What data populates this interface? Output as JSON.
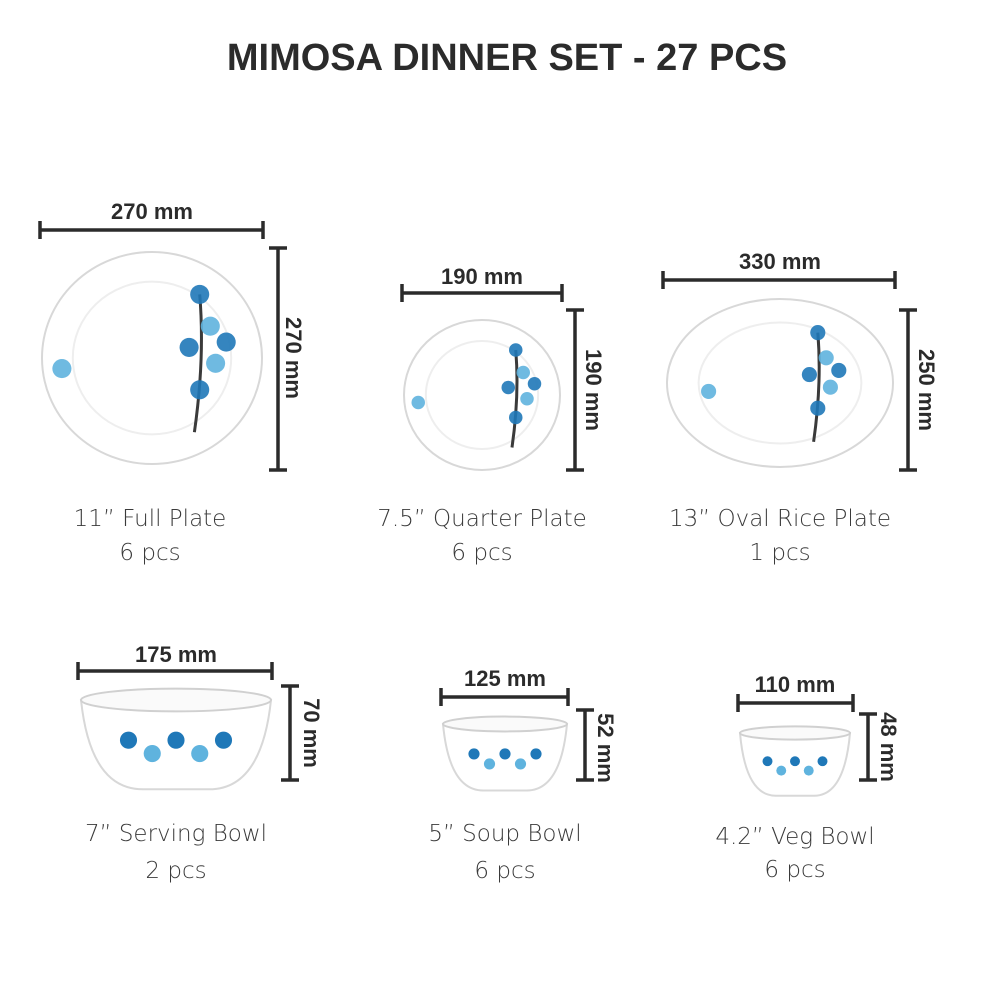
{
  "header": {
    "title": "MIMOSA DINNER SET - 27 PCS"
  },
  "items": [
    {
      "name": "11” Full Plate",
      "count": "6 pcs",
      "width": "270 mm",
      "height": "270 mm"
    },
    {
      "name": "7.5” Quarter Plate",
      "count": "6 pcs",
      "width": "190 mm",
      "height": "190 mm"
    },
    {
      "name": "13” Oval Rice Plate",
      "count": "1 pcs",
      "width": "330 mm",
      "height": "250 mm"
    },
    {
      "name": "7” Serving Bowl",
      "count": "2 pcs",
      "width": "175 mm",
      "height": "70 mm"
    },
    {
      "name": "5” Soup Bowl",
      "count": "6 pcs",
      "width": "125 mm",
      "height": "52 mm"
    },
    {
      "name": "4.2” Veg Bowl",
      "count": "6 pcs",
      "width": "110 mm",
      "height": "48 mm"
    }
  ]
}
